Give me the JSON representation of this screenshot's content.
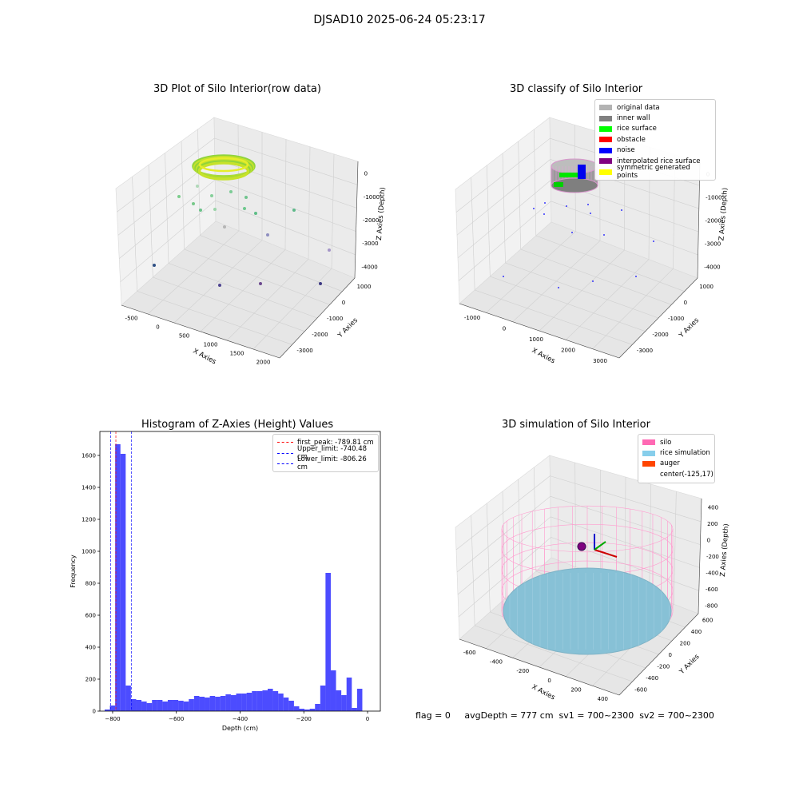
{
  "figure_title": "DJSAD10 2025-06-24 05:23:17",
  "panels": {
    "raw": {
      "title": "3D Plot of Silo Interior(row data)",
      "xlabel": "X Axies",
      "ylabel": "Y Axies",
      "zlabel": "Z Axies (Depth)",
      "xticks": [
        "-500",
        "0",
        "500",
        "1000",
        "1500",
        "2000"
      ],
      "yticks": [
        "1000",
        "0",
        "-1000",
        "-2000",
        "-3000"
      ],
      "zticks": [
        "0",
        "-1000",
        "-2000",
        "-3000",
        "-4000"
      ]
    },
    "classify": {
      "title": "3D classify of Silo Interior",
      "xlabel": "X Axies",
      "ylabel": "Y Axies",
      "zlabel": "Z Axies (Depth)",
      "xticks": [
        "-1000",
        "0",
        "1000",
        "2000",
        "3000"
      ],
      "yticks": [
        "1000",
        "0",
        "-1000",
        "-2000",
        "-3000"
      ],
      "zticks": [
        "0",
        "-1000",
        "-2000",
        "-3000",
        "-4000"
      ],
      "legend": [
        {
          "label": "original data",
          "color": "#b3b3b3"
        },
        {
          "label": "inner wall",
          "color": "#808080"
        },
        {
          "label": "rice surface",
          "color": "#00ff00"
        },
        {
          "label": "obstacle",
          "color": "#ff0000"
        },
        {
          "label": "noise",
          "color": "#0000ff"
        },
        {
          "label": "interpolated rice surface",
          "color": "#800080"
        },
        {
          "label": "symmetric generated points",
          "color": "#ffff00"
        }
      ]
    },
    "simulation": {
      "title": "3D simulation of Silo Interior",
      "xlabel": "X Axies",
      "ylabel": "Y Axies",
      "zlabel": "Z Axies (Depth)",
      "xticks": [
        "-600",
        "-400",
        "-200",
        "0",
        "200",
        "400"
      ],
      "yticks": [
        "600",
        "400",
        "200",
        "0",
        "-200",
        "-400",
        "-600"
      ],
      "zticks": [
        "400",
        "200",
        "0",
        "-200",
        "-400",
        "-600",
        "-800"
      ],
      "legend": [
        {
          "label": "silo",
          "color": "#ff69b4"
        },
        {
          "label": "rice simulation",
          "color": "#87ceeb"
        },
        {
          "label": "auger",
          "color": "#ff4500"
        },
        {
          "label": "center(-125,17)",
          "color": ""
        }
      ]
    }
  },
  "status_line": "flag = 0     avgDepth = 777 cm  sv1 = 700~2300  sv2 = 700~2300",
  "chart_data": {
    "type": "bar",
    "title": "Histogram of Z-Axies (Height) Values",
    "xlabel": "Depth (cm)",
    "ylabel": "Frequency",
    "xlim": [
      -840,
      40
    ],
    "ylim": [
      0,
      1750
    ],
    "xticks": [
      -800,
      -600,
      -400,
      -200,
      0
    ],
    "yticks": [
      0,
      200,
      400,
      600,
      800,
      1000,
      1200,
      1400,
      1600
    ],
    "bin_width": 16.5,
    "bin_start": -825,
    "values": [
      10,
      35,
      1670,
      1610,
      160,
      75,
      70,
      60,
      50,
      70,
      70,
      60,
      70,
      70,
      65,
      60,
      75,
      95,
      90,
      85,
      95,
      90,
      95,
      105,
      100,
      110,
      110,
      115,
      125,
      125,
      130,
      140,
      125,
      110,
      85,
      65,
      30,
      15,
      10,
      15,
      45,
      160,
      865,
      255,
      130,
      100,
      210,
      20,
      140
    ],
    "color": "#0000ff",
    "vlines": [
      {
        "label": "first_peak: -789.81 cm",
        "x": -789.81,
        "color": "#ff0000"
      },
      {
        "label": "Upper_limit: -740.48 cm",
        "x": -740.48,
        "color": "#0000ff"
      },
      {
        "label": "Lower_limit: -806.26 cm",
        "x": -806.26,
        "color": "#0000ff"
      }
    ]
  }
}
